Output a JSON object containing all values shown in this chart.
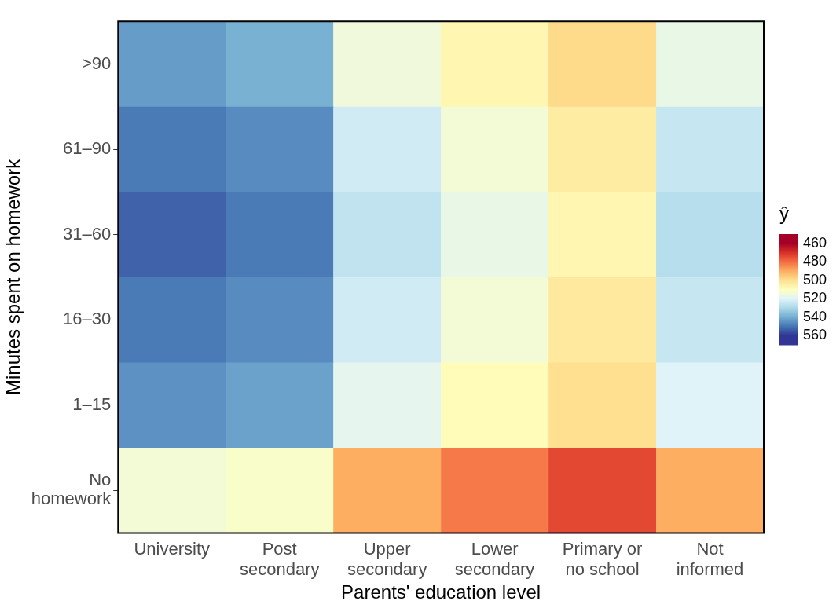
{
  "chart_data": {
    "type": "heatmap",
    "xlabel": "Parents' education level",
    "ylabel": "Minutes spent on homework",
    "clabel": "ŷ",
    "categories": [
      "University",
      "Post\nsecondary",
      "Upper\nsecondary",
      "Lower\nsecondary",
      "Primary or\nno school",
      "Not\ninformed"
    ],
    "y_categories": [
      ">90",
      "61–90",
      "31–60",
      "16–30",
      "1–15",
      "No\nhomework"
    ],
    "cells": [
      [
        543,
        539,
        515,
        507,
        499,
        517
      ],
      [
        549,
        546,
        523,
        514,
        504,
        525
      ],
      [
        553,
        549,
        526,
        517,
        507,
        528
      ],
      [
        549,
        546,
        523,
        514,
        503,
        525
      ],
      [
        545,
        542,
        518,
        509,
        500,
        520
      ],
      [
        514,
        512,
        490,
        482,
        474,
        490
      ]
    ],
    "clim": [
      450,
      570
    ],
    "cticks": [
      460,
      480,
      500,
      520,
      540,
      560
    ],
    "grid": false
  }
}
